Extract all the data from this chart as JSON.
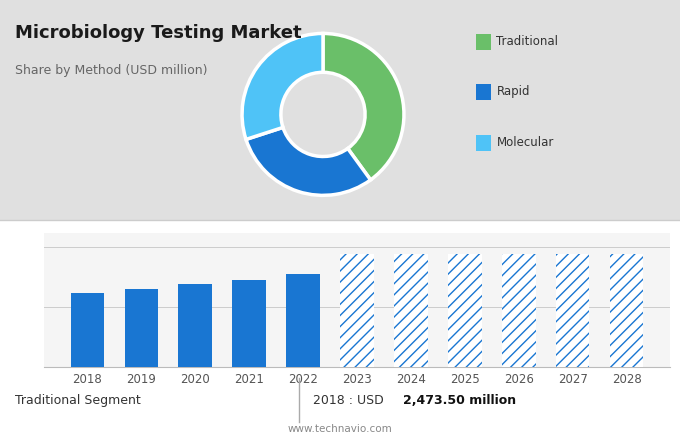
{
  "title": "Microbiology Testing Market",
  "subtitle": "Share by Method (USD million)",
  "donut": {
    "values": [
      40,
      30,
      30
    ],
    "colors": [
      "#6abf69",
      "#1976d2",
      "#4fc3f7"
    ],
    "labels": [
      "Traditional",
      "Rapid",
      "Molecular"
    ]
  },
  "bar": {
    "years": [
      2018,
      2019,
      2020,
      2021,
      2022,
      2023,
      2024,
      2025,
      2026,
      2027,
      2028
    ],
    "values": [
      2473.5,
      2620,
      2760,
      2920,
      3100,
      3600,
      3600,
      3600,
      3600,
      3600,
      3600
    ],
    "solid_color": "#1976d2",
    "solid_count": 5
  },
  "footer_left": "Traditional Segment",
  "footer_value_prefix": "2018 : USD ",
  "footer_value_bold": "2,473.50 million",
  "footer_url": "www.technavio.com",
  "bg_top": "#e0e0e0",
  "bg_bottom": "#f7f7f7",
  "legend_labels": [
    "Traditional",
    "Rapid",
    "Molecular"
  ],
  "legend_colors": [
    "#6abf69",
    "#1976d2",
    "#4fc3f7"
  ]
}
